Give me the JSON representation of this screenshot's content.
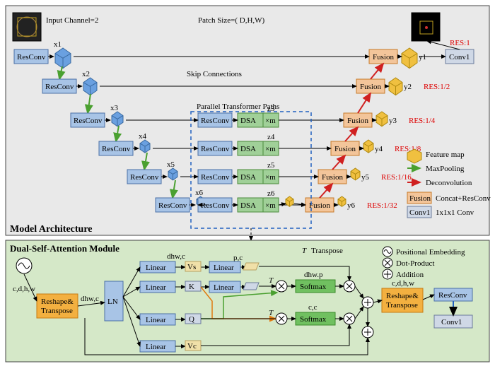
{
  "panel_top": {
    "bg": "#e9e9e9",
    "border": "#444"
  },
  "panel_bot": {
    "bg": "#d5e8c8",
    "border": "#444"
  },
  "colors": {
    "resconv": "#a8c4e6",
    "resconv_stroke": "#4a6fa5",
    "dsa": "#a0d098",
    "dsa_stroke": "#4a8a3a",
    "fusion": "#f3c59a",
    "fusion_stroke": "#c77a2a",
    "conv1": "#cfd8e6",
    "conv1_stroke": "#6a7a9a",
    "cube_blue": "#6aa0e0",
    "cube_blue_dk": "#3a6aa0",
    "cube_yel": "#f0c040",
    "cube_yel_dk": "#b08a10",
    "cube_tan": "#f0e0a8",
    "cube_tan_dk": "#b8a060",
    "linear": "#a8c4e6",
    "ln": "#a8c4e6",
    "softmax": "#70c060",
    "softmax_stroke": "#3a8a2a",
    "reshape": "#f3b040",
    "reshape_stroke": "#c77a10"
  },
  "top": {
    "title": "Model Architecture",
    "input_label": "Input Channel=2",
    "patch_label": "Patch Size=( D,H,W)",
    "skip_label": "Skip Connections",
    "parallel_label": "Parallel Transformer Paths",
    "enc_rows": [
      {
        "x": "x1",
        "res": "RES:1",
        "y": "y1"
      },
      {
        "x": "x2",
        "res": "RES:1/2",
        "y": "y2"
      },
      {
        "x": "x3",
        "res": "RES:1/4",
        "y": "y3"
      },
      {
        "x": "x4",
        "res": "RES:1/8",
        "y": "y4"
      },
      {
        "x": "x5",
        "res": "RES:1/16",
        "y": "y5"
      },
      {
        "x": "x6",
        "res": "RES:1/32",
        "y": "y6"
      }
    ],
    "block_labels": {
      "resconv": "ResConv",
      "dsa": "DSA",
      "xm": "×m",
      "fusion": "Fusion",
      "conv1": "Conv1"
    },
    "z": [
      "z3",
      "z4",
      "z5",
      "z6"
    ],
    "legend": [
      {
        "label": "Feature map"
      },
      {
        "label": "MaxPooling"
      },
      {
        "label": "Deconvolution"
      },
      {
        "label": "Concat+ResConv"
      },
      {
        "label": "1x1x1 Conv"
      }
    ]
  },
  "bot": {
    "title": "Dual-Self-Attention Module",
    "in_dim": "c,d,h,w",
    "dhw_c": "dhw,c",
    "pc": "p,c",
    "dhw_p": "dhw.p",
    "cc": "c,c",
    "reshape": "Reshape&\nTranspose",
    "ln": "LN",
    "linear": "Linear",
    "vs": "Vs",
    "k": "K",
    "q": "Q",
    "vc": "Vc",
    "softmax": "Softmax",
    "T": "T",
    "transpose": "Transpose",
    "resconv": "ResConv",
    "conv1": "Conv1",
    "out_dim": "c,d,h,w",
    "legend": [
      {
        "label": "Positional Embedding"
      },
      {
        "label": "Dot-Product"
      },
      {
        "label": "Addition"
      }
    ]
  }
}
